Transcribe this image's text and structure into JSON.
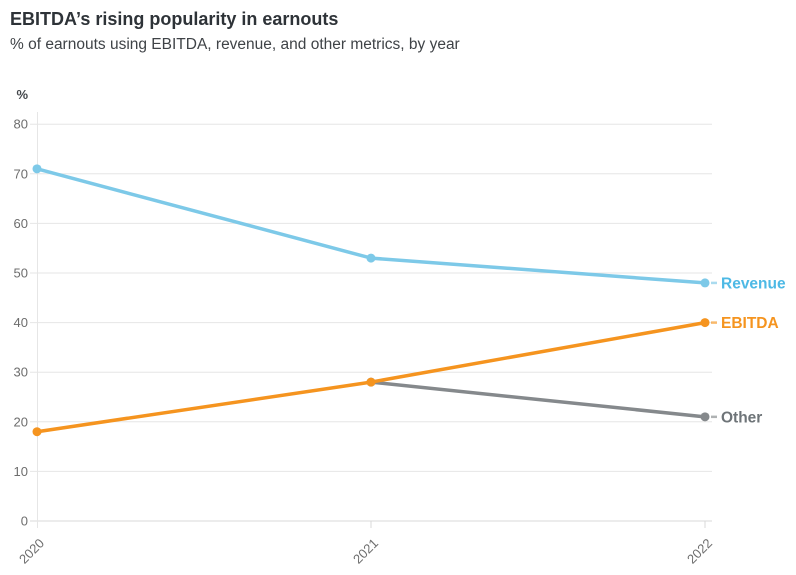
{
  "header": {
    "title": "EBITDA’s rising popularity in earnouts",
    "subtitle": "% of earnouts using EBITDA, revenue, and other metrics, by year"
  },
  "chart_data": {
    "type": "line",
    "title": "EBITDA’s rising popularity in earnouts",
    "subtitle": "% of earnouts using EBITDA, revenue, and other metrics, by year",
    "x": [
      "2020",
      "2021",
      "2022"
    ],
    "series": [
      {
        "name": "Revenue",
        "color": "#7dc9e8",
        "label_color": "#4db9e5",
        "values": [
          71,
          53,
          48
        ]
      },
      {
        "name": "EBITDA",
        "color": "#f5941f",
        "label_color": "#f5941f",
        "values": [
          18,
          28,
          40
        ]
      },
      {
        "name": "Other",
        "color": "#85898c",
        "label_color": "#6e7478",
        "values": [
          null,
          28,
          21
        ]
      }
    ],
    "ylabel": "%",
    "xlabel": "",
    "yticks": [
      0,
      10,
      20,
      30,
      40,
      50,
      60,
      70,
      80
    ],
    "ylim": [
      0,
      80
    ],
    "grid": true,
    "legend_position": "end-of-line direct labels",
    "grid_color": "#e6e6e6",
    "axis_color": "#d9d9d9",
    "tick_label_color": "#6d6d6d"
  }
}
